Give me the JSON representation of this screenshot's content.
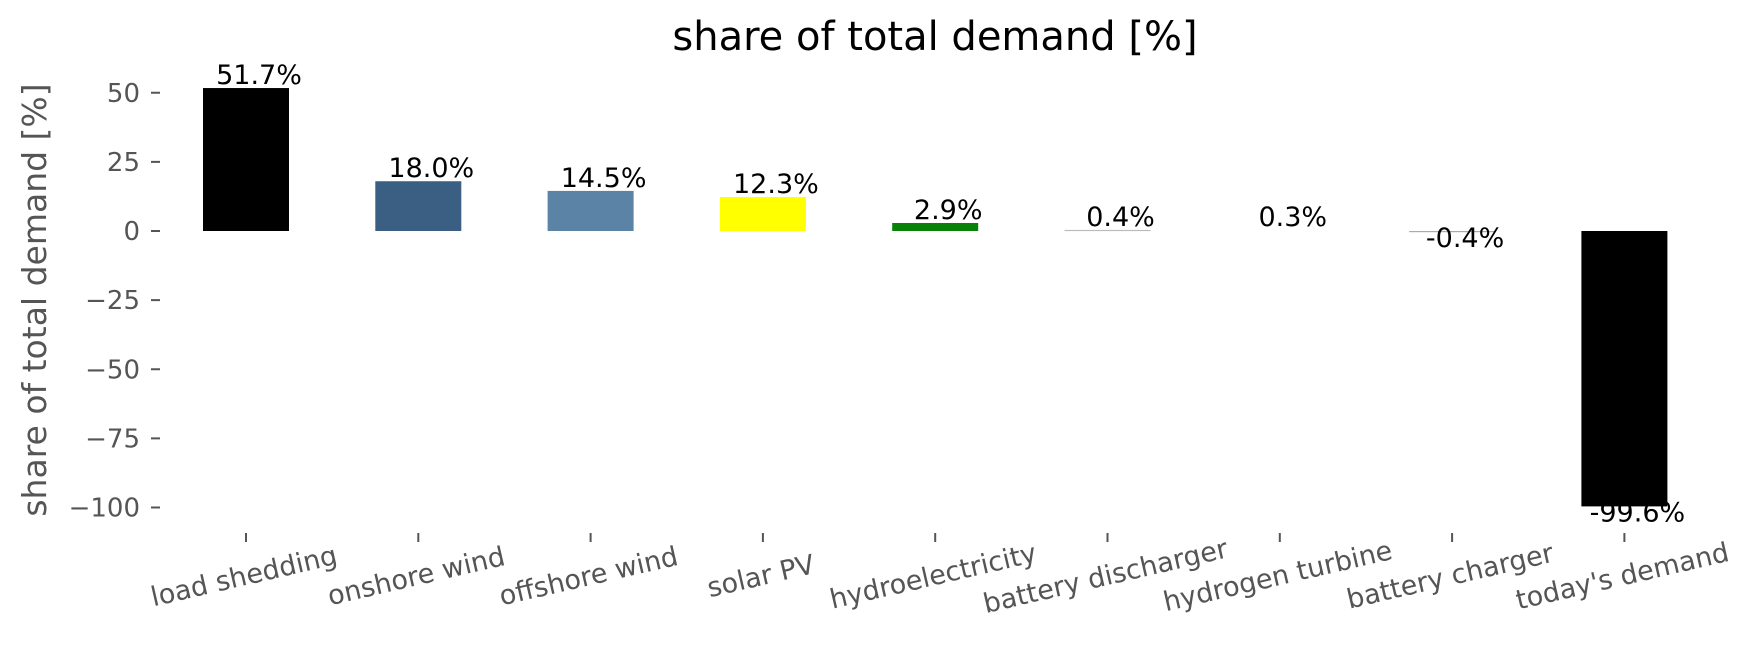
{
  "chart_data": {
    "type": "bar",
    "title": "share of total demand [%]",
    "xlabel": "",
    "ylabel": "share of total demand [%]",
    "categories": [
      "load shedding",
      "onshore wind",
      "offshore wind",
      "solar PV",
      "hydroelectricity",
      "battery discharger",
      "hydrogen turbine",
      "battery charger",
      "today's demand"
    ],
    "values": [
      51.7,
      18.0,
      14.5,
      12.3,
      2.9,
      0.4,
      0.3,
      -0.4,
      -99.6
    ],
    "value_labels": [
      "51.7%",
      "18.0%",
      "14.5%",
      "12.3%",
      "2.9%",
      "0.4%",
      "0.3%",
      "-0.4%",
      "-99.6%"
    ],
    "colors": [
      "#000000",
      "#3b5f82",
      "#5b83a6",
      "#ffff00",
      "#088108",
      "#bbbbbb",
      "#ffffff",
      "#aaaaaa",
      "#000000"
    ],
    "yticks": [
      50,
      25,
      0,
      -25,
      -50,
      -75,
      -100
    ],
    "ytick_labels": [
      "50",
      "25",
      "0",
      "−25",
      "−50",
      "−75",
      "−100"
    ],
    "ylim": [
      -110,
      60
    ],
    "grid": false,
    "legend": "none"
  }
}
